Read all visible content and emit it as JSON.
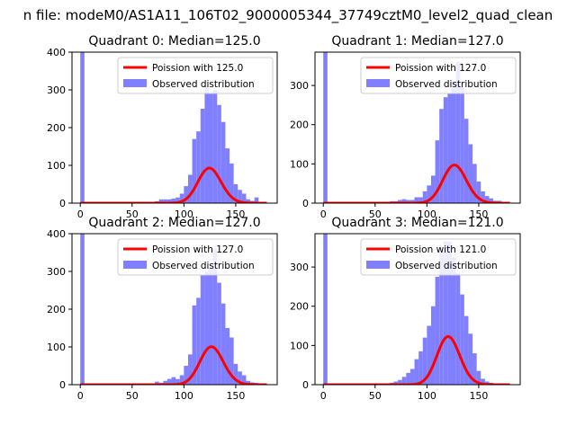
{
  "suptitle": "n file: modeM0/AS1A11_106T02_9000005344_37749cztM0_level2_quad_clean",
  "colors": {
    "hist": "#7f7fff",
    "curve": "#ff0000",
    "axis": "#000000"
  },
  "chart_data": [
    {
      "type": "bar",
      "title": "Quadrant 0: Median=125.0",
      "xlabel": "",
      "ylabel": "",
      "xlim": [
        -8,
        190
      ],
      "ylim": [
        0,
        400
      ],
      "xticks": [
        0,
        50,
        100,
        150
      ],
      "yticks": [
        0,
        100,
        200,
        300,
        400
      ],
      "legend": {
        "placement": "top-right",
        "entries": [
          "Poission with 125.0",
          "Observed distribution"
        ]
      },
      "bin_width": 4,
      "series": [
        {
          "name": "Observed distribution",
          "kind": "hist",
          "bins": [
            [
              0,
              400
            ],
            [
              4,
              1
            ],
            [
              8,
              1
            ],
            [
              12,
              1
            ],
            [
              16,
              1
            ],
            [
              20,
              1
            ],
            [
              24,
              1
            ],
            [
              28,
              1
            ],
            [
              32,
              1
            ],
            [
              36,
              1
            ],
            [
              40,
              1
            ],
            [
              44,
              1
            ],
            [
              48,
              1
            ],
            [
              52,
              1
            ],
            [
              56,
              1
            ],
            [
              60,
              1
            ],
            [
              64,
              1
            ],
            [
              68,
              1
            ],
            [
              72,
              5
            ],
            [
              76,
              10
            ],
            [
              80,
              10
            ],
            [
              84,
              10
            ],
            [
              88,
              12
            ],
            [
              92,
              15
            ],
            [
              96,
              25
            ],
            [
              100,
              45
            ],
            [
              104,
              75
            ],
            [
              108,
              170
            ],
            [
              112,
              190
            ],
            [
              116,
              250
            ],
            [
              120,
              310
            ],
            [
              124,
              290
            ],
            [
              128,
              300
            ],
            [
              132,
              260
            ],
            [
              136,
              215
            ],
            [
              140,
              145
            ],
            [
              144,
              105
            ],
            [
              148,
              50
            ],
            [
              152,
              35
            ],
            [
              156,
              25
            ],
            [
              160,
              10
            ],
            [
              164,
              6
            ],
            [
              168,
              15
            ]
          ]
        },
        {
          "name": "Poission with 125.0",
          "kind": "curve",
          "mean": 125.0,
          "scale": 4,
          "xmin": 0,
          "xmax": 180
        }
      ]
    },
    {
      "type": "bar",
      "title": "Quadrant 1: Median=127.0",
      "xlabel": "",
      "ylabel": "",
      "xlim": [
        -8,
        190
      ],
      "ylim": [
        0,
        385
      ],
      "xticks": [
        0,
        50,
        100,
        150
      ],
      "yticks": [
        0,
        100,
        200,
        300
      ],
      "legend": {
        "placement": "top-right",
        "entries": [
          "Poission with 127.0",
          "Observed distribution"
        ]
      },
      "bin_width": 4,
      "series": [
        {
          "name": "Observed distribution",
          "kind": "hist",
          "bins": [
            [
              0,
              385
            ],
            [
              4,
              1
            ],
            [
              8,
              1
            ],
            [
              12,
              1
            ],
            [
              16,
              1
            ],
            [
              20,
              1
            ],
            [
              24,
              1
            ],
            [
              28,
              1
            ],
            [
              32,
              1
            ],
            [
              36,
              1
            ],
            [
              40,
              1
            ],
            [
              44,
              2
            ],
            [
              48,
              2
            ],
            [
              52,
              1
            ],
            [
              56,
              2
            ],
            [
              60,
              2
            ],
            [
              64,
              5
            ],
            [
              68,
              5
            ],
            [
              72,
              8
            ],
            [
              76,
              10
            ],
            [
              80,
              8
            ],
            [
              84,
              8
            ],
            [
              88,
              15
            ],
            [
              92,
              15
            ],
            [
              96,
              30
            ],
            [
              100,
              45
            ],
            [
              104,
              70
            ],
            [
              108,
              160
            ],
            [
              112,
              240
            ],
            [
              116,
              270
            ],
            [
              120,
              280
            ],
            [
              124,
              310
            ],
            [
              128,
              360
            ],
            [
              132,
              295
            ],
            [
              136,
              215
            ],
            [
              140,
              150
            ],
            [
              144,
              100
            ],
            [
              148,
              55
            ],
            [
              152,
              30
            ],
            [
              156,
              18
            ],
            [
              160,
              12
            ],
            [
              164,
              6
            ],
            [
              168,
              6
            ]
          ]
        },
        {
          "name": "Poission with 127.0",
          "kind": "curve",
          "mean": 127.0,
          "scale": 4,
          "xmin": 0,
          "xmax": 180
        }
      ]
    },
    {
      "type": "bar",
      "title": "Quadrant 2: Median=127.0",
      "xlabel": "",
      "ylabel": "",
      "xlim": [
        -8,
        190
      ],
      "ylim": [
        0,
        400
      ],
      "xticks": [
        0,
        50,
        100,
        150
      ],
      "yticks": [
        0,
        100,
        200,
        300,
        400
      ],
      "legend": {
        "placement": "top-right",
        "entries": [
          "Poission with 127.0",
          "Observed distribution"
        ]
      },
      "bin_width": 4,
      "series": [
        {
          "name": "Observed distribution",
          "kind": "hist",
          "bins": [
            [
              0,
              400
            ],
            [
              4,
              1
            ],
            [
              8,
              1
            ],
            [
              12,
              1
            ],
            [
              16,
              1
            ],
            [
              20,
              1
            ],
            [
              24,
              1
            ],
            [
              28,
              1
            ],
            [
              32,
              1
            ],
            [
              36,
              1
            ],
            [
              40,
              1
            ],
            [
              44,
              1
            ],
            [
              48,
              1
            ],
            [
              52,
              1
            ],
            [
              56,
              1
            ],
            [
              60,
              1
            ],
            [
              64,
              1
            ],
            [
              68,
              1
            ],
            [
              72,
              8
            ],
            [
              76,
              5
            ],
            [
              80,
              10
            ],
            [
              84,
              15
            ],
            [
              88,
              20
            ],
            [
              92,
              15
            ],
            [
              96,
              25
            ],
            [
              100,
              50
            ],
            [
              104,
              80
            ],
            [
              108,
              210
            ],
            [
              112,
              230
            ],
            [
              116,
              290
            ],
            [
              120,
              300
            ],
            [
              124,
              310
            ],
            [
              128,
              360
            ],
            [
              132,
              270
            ],
            [
              136,
              215
            ],
            [
              140,
              150
            ],
            [
              144,
              125
            ],
            [
              148,
              55
            ],
            [
              152,
              35
            ],
            [
              156,
              25
            ],
            [
              160,
              10
            ],
            [
              164,
              6
            ],
            [
              168,
              5
            ]
          ]
        },
        {
          "name": "Poission with 127.0",
          "kind": "curve",
          "mean": 127.0,
          "scale": 4,
          "xmin": 0,
          "xmax": 180
        }
      ]
    },
    {
      "type": "bar",
      "title": "Quadrant 3: Median=121.0",
      "xlabel": "",
      "ylabel": "",
      "xlim": [
        -8,
        190
      ],
      "ylim": [
        0,
        385
      ],
      "xticks": [
        0,
        50,
        100,
        150
      ],
      "yticks": [
        0,
        100,
        200,
        300
      ],
      "legend": {
        "placement": "top-right",
        "entries": [
          "Poission with 121.0",
          "Observed distribution"
        ]
      },
      "bin_width": 4,
      "series": [
        {
          "name": "Observed distribution",
          "kind": "hist",
          "bins": [
            [
              0,
              385
            ],
            [
              4,
              1
            ],
            [
              8,
              1
            ],
            [
              12,
              1
            ],
            [
              16,
              1
            ],
            [
              20,
              1
            ],
            [
              24,
              1
            ],
            [
              28,
              1
            ],
            [
              32,
              1
            ],
            [
              36,
              1
            ],
            [
              40,
              1
            ],
            [
              44,
              1
            ],
            [
              48,
              1
            ],
            [
              52,
              1
            ],
            [
              56,
              1
            ],
            [
              60,
              1
            ],
            [
              64,
              5
            ],
            [
              68,
              8
            ],
            [
              72,
              12
            ],
            [
              76,
              20
            ],
            [
              80,
              30
            ],
            [
              84,
              40
            ],
            [
              88,
              65
            ],
            [
              92,
              85
            ],
            [
              96,
              120
            ],
            [
              100,
              150
            ],
            [
              104,
              200
            ],
            [
              108,
              275
            ],
            [
              112,
              340
            ],
            [
              116,
              365
            ],
            [
              120,
              365
            ],
            [
              124,
              325
            ],
            [
              128,
              285
            ],
            [
              132,
              230
            ],
            [
              136,
              175
            ],
            [
              140,
              130
            ],
            [
              144,
              80
            ],
            [
              148,
              35
            ],
            [
              152,
              15
            ],
            [
              156,
              8
            ],
            [
              160,
              5
            ]
          ]
        },
        {
          "name": "Poission with 121.0",
          "kind": "curve",
          "mean": 121.0,
          "scale": 4,
          "xmin": 0,
          "xmax": 180
        }
      ]
    }
  ]
}
